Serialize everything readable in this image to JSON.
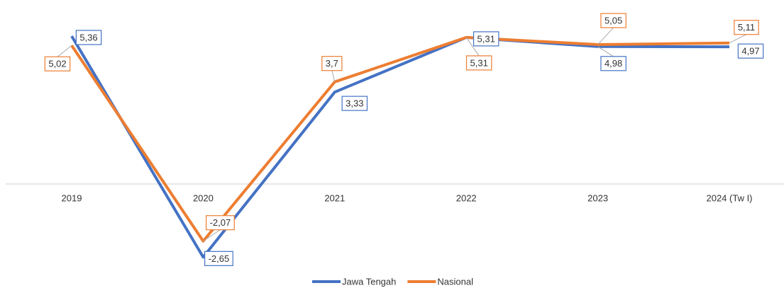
{
  "chart_data": {
    "type": "line",
    "categories": [
      "2019",
      "2020",
      "2021",
      "2022",
      "2023",
      "2024 (Tw I)"
    ],
    "series": [
      {
        "name": "Jawa Tengah",
        "color": "#4472c4",
        "values": [
          5.36,
          -2.65,
          3.33,
          5.31,
          4.98,
          4.97
        ],
        "value_labels": [
          "5,36",
          "-2,65",
          "3,33",
          "5,31",
          "4,98",
          "4,97"
        ]
      },
      {
        "name": "Nasional",
        "color": "#ed7d31",
        "values": [
          5.02,
          -2.07,
          3.7,
          5.31,
          5.05,
          5.11
        ],
        "value_labels": [
          "5,02",
          "-2,07",
          "3,7",
          "5,31",
          "5,05",
          "5,11"
        ]
      }
    ],
    "ylim": [
      -3,
      6
    ],
    "grid": false,
    "legend": "bottom"
  }
}
